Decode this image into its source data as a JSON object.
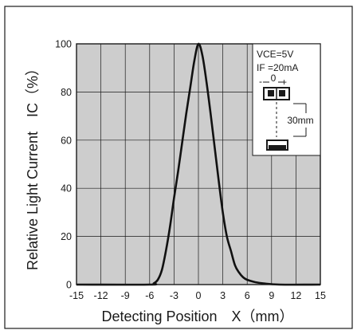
{
  "chart_data": {
    "type": "line",
    "xlabel": "Detecting Position　X（mm）",
    "ylabel": "Relative Light Current　IC（%）",
    "xlim": [
      -15,
      15
    ],
    "ylim": [
      0,
      100
    ],
    "xticks": [
      "-15",
      "-12",
      "-9",
      "-6",
      "-3",
      "0",
      "3",
      "6",
      "9",
      "12",
      "15"
    ],
    "yticks": [
      "0",
      "20",
      "40",
      "60",
      "80",
      "100"
    ],
    "grid": true,
    "series": [
      {
        "x": [
          -15,
          -6,
          -5.5,
          -5,
          -4.5,
          -4,
          -3.5,
          -3,
          -2.5,
          -2,
          -1.5,
          -1,
          -0.5,
          0,
          0.5,
          1,
          1.5,
          2,
          2.5,
          3,
          3.5,
          4,
          4.5,
          5,
          5.5,
          6,
          7,
          8,
          10,
          15
        ],
        "y": [
          0,
          0,
          0.5,
          2,
          6,
          14,
          24,
          36,
          47,
          59,
          71,
          82,
          93,
          100,
          95,
          84,
          71,
          57,
          43,
          30,
          20,
          14,
          8,
          5,
          3,
          2,
          1,
          0.5,
          0,
          0
        ]
      }
    ]
  },
  "legend": {
    "conditions": [
      "VCE=5V",
      "IF =20mA"
    ],
    "offset_label": "0",
    "minus_sign": "-",
    "plus_sign": "+",
    "distance_label": "30mm"
  }
}
